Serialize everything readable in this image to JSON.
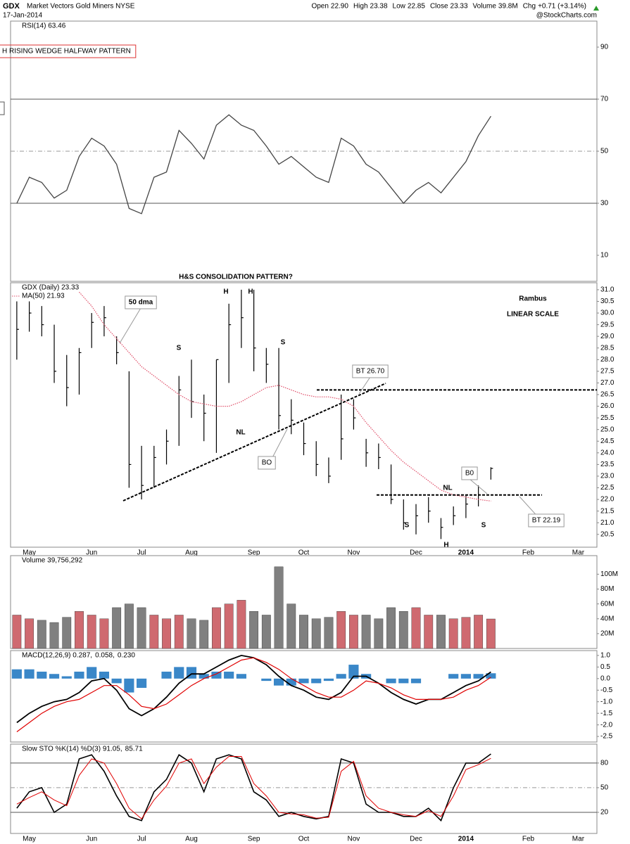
{
  "header": {
    "symbol": "GDX",
    "name": "Market Vectors Gold Miners NYSE",
    "date": "17-Jan-2014",
    "quote": [
      {
        "label": "Open",
        "value": "22.90"
      },
      {
        "label": "High",
        "value": "23.38"
      },
      {
        "label": "Low",
        "value": "22.85"
      },
      {
        "label": "Close",
        "value": "23.33"
      },
      {
        "label": "Volume",
        "value": "39.8M"
      },
      {
        "label": "Chg",
        "value": "+0.71 (+3.14%)"
      }
    ],
    "source": "@StockCharts.com"
  },
  "chart_data": [
    {
      "type": "line",
      "legend": "RSI(14) 63.46",
      "color": "#444",
      "values": [
        30,
        40,
        38,
        32,
        35,
        48,
        55,
        52,
        45,
        28,
        26,
        40,
        42,
        58,
        53,
        47,
        60,
        64,
        60,
        58,
        52,
        45,
        48,
        44,
        40,
        38,
        55,
        52,
        45,
        42,
        36,
        30,
        35,
        38,
        34,
        40,
        46,
        56,
        63.46,
        null,
        null,
        null,
        null,
        null,
        null,
        null,
        null
      ],
      "ylim": [
        0,
        100
      ],
      "yticks": [
        10,
        30,
        50,
        70,
        90
      ],
      "hlines": [
        {
          "value": 30,
          "style": "solid"
        },
        {
          "value": 50,
          "style": "dashdot"
        },
        {
          "value": 70,
          "style": "solid"
        }
      ],
      "annotations": [
        {
          "text": "H RISING WEDGE HALFWAY PATTERN",
          "color": "#e00000"
        },
        {
          "text": "H&S CONSOLIDATION PATTERN?",
          "color": "#000"
        }
      ]
    },
    {
      "type": "ohlc",
      "legend": "GDX (Daily) 23.33",
      "color": "#000",
      "categories": [
        null,
        "May",
        null,
        null,
        null,
        null,
        "Jun",
        null,
        null,
        null,
        "Jul",
        null,
        null,
        null,
        "Aug",
        null,
        null,
        null,
        null,
        "Sep",
        null,
        null,
        null,
        "Oct",
        null,
        null,
        null,
        "Nov",
        null,
        null,
        null,
        null,
        "Dec",
        null,
        null,
        null,
        "2014",
        null,
        null,
        null,
        null,
        "Feb",
        null,
        null,
        null,
        "Mar",
        null
      ],
      "high": [
        30.5,
        30.5,
        30.3,
        29.5,
        28.2,
        28.5,
        30.0,
        30.3,
        29.0,
        27.5,
        24.3,
        24.3,
        25.0,
        27.3,
        28.0,
        26.5,
        28.0,
        30.4,
        31.0,
        31.0,
        28.5,
        28.5,
        26.3,
        25.3,
        24.5,
        23.8,
        26.5,
        26.3,
        24.6,
        24.4,
        23.5,
        22.0,
        21.8,
        22.1,
        21.2,
        21.7,
        22.2,
        22.6,
        23.38,
        null,
        null,
        null,
        null,
        null,
        null,
        null,
        null
      ],
      "low": [
        28.0,
        29.2,
        29.0,
        27.0,
        26.0,
        26.5,
        28.5,
        29.0,
        27.8,
        22.5,
        22.0,
        22.5,
        23.5,
        24.3,
        25.5,
        24.5,
        24.0,
        27.0,
        28.5,
        27.5,
        27.0,
        25.0,
        24.8,
        23.9,
        23.0,
        22.7,
        23.7,
        25.0,
        23.4,
        23.3,
        21.8,
        20.7,
        20.5,
        21.0,
        20.3,
        20.9,
        21.2,
        21.7,
        22.85,
        null,
        null,
        null,
        null,
        null,
        null,
        null,
        null
      ],
      "close": [
        29.3,
        30.0,
        29.5,
        27.5,
        26.8,
        28.3,
        29.6,
        29.8,
        28.3,
        23.5,
        22.6,
        23.8,
        24.5,
        26.7,
        26.2,
        25.7,
        28.0,
        29.5,
        29.8,
        28.5,
        27.8,
        25.6,
        25.4,
        24.4,
        23.5,
        23.0,
        24.6,
        25.5,
        24.0,
        23.8,
        22.0,
        21.0,
        21.3,
        21.5,
        20.8,
        21.3,
        21.8,
        22.2,
        23.33,
        null,
        null,
        null,
        null,
        null,
        null,
        null,
        null
      ],
      "series": [
        {
          "name": "MA(50) 21.93",
          "color": "#e0506a",
          "values": [
            null,
            null,
            null,
            null,
            null,
            30.9,
            30.3,
            29.5,
            28.9,
            28.3,
            27.7,
            27.3,
            26.9,
            26.5,
            26.2,
            26.1,
            26.0,
            26.0,
            26.2,
            26.5,
            26.8,
            26.9,
            26.7,
            26.5,
            26.4,
            26.4,
            26.3,
            26.0,
            25.3,
            24.7,
            24.1,
            23.6,
            23.2,
            22.8,
            22.4,
            22.2,
            22.1,
            22.0,
            21.93,
            null,
            null,
            null,
            null,
            null,
            null,
            null,
            null
          ]
        }
      ],
      "ylim": [
        19.95,
        31.3
      ],
      "yticks": [
        20.5,
        {
          "value": 21,
          "label": "21.0"
        },
        21.5,
        {
          "value": 22,
          "label": "22.0"
        },
        22.5,
        {
          "value": 23,
          "label": "23.0"
        },
        23.5,
        {
          "value": 24,
          "label": "24.0"
        },
        24.5,
        {
          "value": 25,
          "label": "25.0"
        },
        25.5,
        {
          "value": 26,
          "label": "26.0"
        },
        26.5,
        {
          "value": 27,
          "label": "27.0"
        },
        27.5,
        {
          "value": 28,
          "label": "28.0"
        },
        28.5,
        {
          "value": 29,
          "label": "29.0"
        },
        29.5,
        {
          "value": 30,
          "label": "30.0"
        },
        30.5,
        {
          "value": 31,
          "label": "31.0"
        }
      ],
      "annotations": [
        {
          "text": "Rambus"
        },
        {
          "text": "LINEAR SCALE"
        },
        {
          "text": "S"
        },
        {
          "text": "H"
        },
        {
          "text": "H"
        },
        {
          "text": "S"
        },
        {
          "text": "NL"
        },
        {
          "text": "S"
        },
        {
          "text": "H"
        },
        {
          "text": "S"
        },
        {
          "text": "NL"
        }
      ],
      "callouts": [
        {
          "text": "50 dma",
          "color": "#e00000"
        },
        {
          "text": "BO",
          "color": "#0000cc"
        },
        {
          "text": "BT 26.70",
          "color": "#0000cc",
          "value": 26.7
        },
        {
          "text": "B0",
          "color": "#0000cc"
        },
        {
          "text": "BT 22.19",
          "color": "#0000cc",
          "value": 22.19
        }
      ]
    },
    {
      "type": "bar",
      "legend": "Volume 39,756,292",
      "up_color": "#cf6a70",
      "down_color": "#808080",
      "values": [
        45,
        40,
        38,
        35,
        42,
        50,
        45,
        40,
        55,
        60,
        55,
        45,
        40,
        45,
        40,
        38,
        55,
        60,
        65,
        50,
        45,
        110,
        60,
        45,
        40,
        42,
        50,
        45,
        45,
        40,
        55,
        50,
        55,
        45,
        45,
        40,
        42,
        45,
        39.76,
        null,
        null,
        null,
        null,
        null,
        null,
        null,
        null
      ],
      "ylim": [
        0,
        125
      ],
      "yticks": [
        {
          "value": 20,
          "label": "20M"
        },
        {
          "value": 40,
          "label": "40M"
        },
        {
          "value": 60,
          "label": "60M"
        },
        {
          "value": 80,
          "label": "80M"
        },
        {
          "value": 100,
          "label": "100M"
        }
      ]
    },
    {
      "type": "macd",
      "series": [
        {
          "name": "MACD(12,26,9) 0.287,",
          "kind": "line",
          "color": "#000",
          "values": [
            -1.9,
            -1.5,
            -1.2,
            -1.0,
            -0.9,
            -0.6,
            -0.1,
            0.0,
            -0.5,
            -1.3,
            -1.6,
            -1.3,
            -0.8,
            -0.2,
            0.2,
            0.2,
            0.5,
            0.8,
            1.0,
            0.9,
            0.6,
            0.1,
            -0.3,
            -0.5,
            -0.8,
            -0.9,
            -0.6,
            0.1,
            0.1,
            -0.2,
            -0.6,
            -0.9,
            -1.1,
            -0.9,
            -0.9,
            -0.6,
            -0.3,
            -0.1,
            0.287,
            null,
            null,
            null,
            null,
            null,
            null,
            null,
            null
          ]
        },
        {
          "name": "0.058,",
          "kind": "line",
          "color": "#e00000",
          "values": [
            -2.3,
            -1.9,
            -1.5,
            -1.2,
            -1.0,
            -0.9,
            -0.6,
            -0.3,
            -0.3,
            -0.7,
            -1.2,
            -1.3,
            -1.1,
            -0.7,
            -0.3,
            0.0,
            0.2,
            0.5,
            0.8,
            0.9,
            0.7,
            0.4,
            0.0,
            -0.3,
            -0.6,
            -0.8,
            -0.8,
            -0.5,
            -0.1,
            -0.2,
            -0.4,
            -0.7,
            -0.9,
            -0.9,
            -0.9,
            -0.8,
            -0.5,
            -0.3,
            0.058,
            null,
            null,
            null,
            null,
            null,
            null,
            null,
            null
          ]
        },
        {
          "name": "0.230",
          "kind": "bar",
          "color": "#3a87c8",
          "values": [
            0.4,
            0.4,
            0.3,
            0.2,
            0.1,
            0.3,
            0.5,
            0.3,
            -0.2,
            -0.6,
            -0.4,
            0,
            0.3,
            0.5,
            0.5,
            0.2,
            0.3,
            0.3,
            0.2,
            0,
            -0.1,
            -0.3,
            -0.3,
            -0.2,
            -0.2,
            -0.1,
            0.2,
            0.6,
            0.2,
            0,
            -0.2,
            -0.2,
            -0.2,
            0,
            0,
            0.2,
            0.2,
            0.2,
            0.23,
            null,
            null,
            null,
            null,
            null,
            null,
            null,
            null
          ]
        }
      ],
      "ylim": [
        -2.74,
        1.21
      ],
      "yticks": [
        {
          "value": 1,
          "label": "1.0"
        },
        0.5,
        {
          "value": 0,
          "label": "0.0"
        },
        -0.5,
        {
          "value": -1,
          "label": "-1.0"
        },
        -1.5,
        {
          "value": -2,
          "label": "-2.0"
        },
        -2.5
      ]
    },
    {
      "type": "line",
      "categories": [
        null,
        "May",
        null,
        null,
        null,
        null,
        "Jun",
        null,
        null,
        null,
        "Jul",
        null,
        null,
        null,
        "Aug",
        null,
        null,
        null,
        null,
        "Sep",
        null,
        null,
        null,
        "Oct",
        null,
        null,
        null,
        "Nov",
        null,
        null,
        null,
        null,
        "Dec",
        null,
        null,
        null,
        "2014",
        null,
        null,
        null,
        null,
        "Feb",
        null,
        null,
        null,
        "Mar",
        null
      ],
      "series": [
        {
          "name": "Slow STO %K(14) %D(3) 91.05,",
          "color": "#000",
          "values": [
            25,
            45,
            50,
            20,
            30,
            85,
            90,
            70,
            40,
            15,
            10,
            45,
            60,
            90,
            80,
            45,
            85,
            90,
            85,
            45,
            35,
            15,
            20,
            15,
            12,
            15,
            85,
            80,
            30,
            20,
            20,
            15,
            15,
            25,
            10,
            50,
            80,
            80,
            91.05,
            null,
            null,
            null,
            null,
            null,
            null,
            null,
            null
          ]
        },
        {
          "name": "85.71",
          "color": "#e00000",
          "values": [
            30,
            38,
            45,
            35,
            28,
            65,
            85,
            80,
            55,
            25,
            12,
            35,
            52,
            80,
            85,
            55,
            75,
            88,
            88,
            55,
            40,
            20,
            18,
            17,
            13,
            14,
            70,
            82,
            40,
            25,
            20,
            17,
            15,
            22,
            15,
            40,
            72,
            78,
            85.71,
            null,
            null,
            null,
            null,
            null,
            null,
            null,
            null
          ]
        }
      ],
      "ylim": [
        -5.7,
        103
      ],
      "yticks": [
        20,
        50,
        80
      ],
      "hlines": [
        {
          "value": 20,
          "style": "solid"
        },
        {
          "value": 50,
          "style": "dashdot"
        },
        {
          "value": 80,
          "style": "solid"
        }
      ]
    }
  ]
}
